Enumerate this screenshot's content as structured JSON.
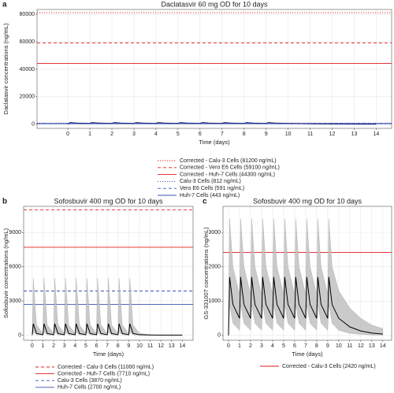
{
  "chart_data": [
    {
      "type": "line",
      "label": "a",
      "title": "Daclatasvir 60 mg OD for 10 days",
      "xlabel": "Time (days)",
      "ylabel": "Daclatasvir concentrations (ng/mL)",
      "xlim": [
        -1.4,
        14.7
      ],
      "ylim": [
        -3000,
        83500
      ],
      "xticks": [
        0,
        1,
        2,
        3,
        4,
        5,
        6,
        7,
        8,
        9,
        10,
        11,
        12,
        13,
        14
      ],
      "yticks": [
        0,
        20000,
        40000,
        60000,
        80000
      ],
      "grid": true,
      "x": [
        0,
        0.1,
        0.4,
        1,
        1.1,
        1.4,
        2,
        2.1,
        2.4,
        3,
        3.1,
        3.4,
        4,
        4.1,
        4.4,
        5,
        5.1,
        5.4,
        6,
        6.1,
        6.4,
        7,
        7.1,
        7.4,
        8,
        8.1,
        8.4,
        9,
        9.1,
        9.4,
        10,
        11,
        12,
        13,
        14
      ],
      "curve": {
        "color": "#1f2a7a",
        "median": [
          0,
          1300,
          900,
          600,
          1300,
          900,
          600,
          1300,
          900,
          600,
          1300,
          900,
          600,
          1300,
          900,
          600,
          1300,
          900,
          600,
          1300,
          900,
          600,
          1300,
          900,
          600,
          1300,
          900,
          600,
          1300,
          900,
          600,
          300,
          150,
          80,
          40
        ]
      },
      "ref_lines": [
        {
          "name": "Corrected - Calu-3 Cells (81200 ng/mL)",
          "color": "#e41a1c",
          "dash": "dotted",
          "value": 81200
        },
        {
          "name": "Corrected - Vero E6 Cells (59100 ng/mL)",
          "color": "#e41a1c",
          "dash": "dashed",
          "value": 59100
        },
        {
          "name": "Corrected - Huh-7 Cells (44300 ng/mL)",
          "color": "#e41a1c",
          "dash": "solid",
          "value": 44300
        },
        {
          "name": "Calu-3 Cells (812 ng/mL)",
          "color": "#3a52b5",
          "dash": "dotted",
          "value": 812
        },
        {
          "name": "Vero E6 Cells (591 ng/mL)",
          "color": "#3a52b5",
          "dash": "dashed",
          "value": 591
        },
        {
          "name": "Huh-7 Cells (443 ng/mL)",
          "color": "#3a52b5",
          "dash": "solid",
          "value": 443
        }
      ]
    },
    {
      "type": "line",
      "label": "b",
      "title": "Sofosbuvir 400 mg OD for 10 days",
      "xlabel": "Time (days)",
      "ylabel": "Sofosbuvir concentrations (ng/mL)",
      "xlim": [
        -0.8,
        15
      ],
      "ylim": [
        -450,
        11300
      ],
      "xticks": [
        0,
        1,
        2,
        3,
        4,
        5,
        6,
        7,
        8,
        9,
        10,
        11,
        12,
        13,
        14
      ],
      "yticks": [
        0,
        3000,
        6000,
        9000
      ],
      "grid": true,
      "x": [
        0,
        0.1,
        0.4,
        1,
        1.1,
        1.4,
        2,
        2.1,
        2.4,
        3,
        3.1,
        3.4,
        4,
        4.1,
        4.4,
        5,
        5.1,
        5.4,
        6,
        6.1,
        6.4,
        7,
        7.1,
        7.4,
        8,
        8.1,
        8.4,
        9,
        9.1,
        9.4,
        10,
        11,
        12,
        13,
        14
      ],
      "curve": {
        "color": "#000000",
        "band_color": "#bdbdbd",
        "median": [
          0,
          1000,
          150,
          30,
          1000,
          150,
          30,
          1000,
          150,
          30,
          1000,
          150,
          30,
          1000,
          150,
          30,
          1000,
          150,
          30,
          1000,
          150,
          30,
          1000,
          150,
          30,
          1000,
          150,
          30,
          1000,
          150,
          30,
          5,
          0,
          0,
          0
        ],
        "upper": [
          0,
          5000,
          900,
          150,
          5000,
          900,
          150,
          5000,
          900,
          150,
          5000,
          900,
          150,
          5000,
          900,
          150,
          5000,
          900,
          150,
          5000,
          900,
          150,
          5000,
          900,
          150,
          5000,
          900,
          150,
          5000,
          900,
          150,
          30,
          5,
          0,
          0
        ],
        "lower": [
          0,
          250,
          20,
          0,
          250,
          20,
          0,
          250,
          20,
          0,
          250,
          20,
          0,
          250,
          20,
          0,
          250,
          20,
          0,
          250,
          20,
          0,
          250,
          20,
          0,
          250,
          20,
          0,
          250,
          20,
          0,
          0,
          0,
          0,
          0
        ]
      },
      "ref_lines": [
        {
          "name": "Corrected - Calu-3 Cells (11000 ng/mL)",
          "color": "#e41a1c",
          "dash": "dashed",
          "value": 11000
        },
        {
          "name": "Corrected - Huh-7 Cells (7710 ng/mL)",
          "color": "#e41a1c",
          "dash": "solid",
          "value": 7710
        },
        {
          "name": "Calu-3 Cells (3870 ng/mL)",
          "color": "#3a52b5",
          "dash": "dashed",
          "value": 3870
        },
        {
          "name": "Huh-7 Cells (2700 ng/mL)",
          "color": "#3a52b5",
          "dash": "solid",
          "value": 2700
        }
      ]
    },
    {
      "type": "line",
      "label": "c",
      "title": "Sofosbuvir 400 mg OD for 10 days",
      "xlabel": "Time (days)",
      "ylabel": "GS-331007 concentrations (ng/mL)",
      "xlim": [
        -0.5,
        14.8
      ],
      "ylim": [
        -140,
        3760
      ],
      "xticks": [
        0,
        1,
        2,
        3,
        4,
        5,
        6,
        7,
        8,
        9,
        10,
        11,
        12,
        13,
        14
      ],
      "yticks": [
        0,
        1000,
        2000,
        3000
      ],
      "grid": true,
      "x": [
        0,
        0.1,
        0.4,
        1,
        1.1,
        1.4,
        2,
        2.1,
        2.4,
        3,
        3.1,
        3.4,
        4,
        4.1,
        4.4,
        5,
        5.1,
        5.4,
        6,
        6.1,
        6.4,
        7,
        7.1,
        7.4,
        8,
        8.1,
        8.4,
        9,
        9.1,
        9.4,
        10,
        11,
        12,
        13,
        14
      ],
      "curve": {
        "color": "#000000",
        "band_color": "#bdbdbd",
        "median": [
          0,
          1700,
          900,
          500,
          1700,
          900,
          500,
          1700,
          900,
          500,
          1700,
          900,
          500,
          1700,
          900,
          500,
          1700,
          900,
          500,
          1700,
          900,
          500,
          1700,
          900,
          500,
          1700,
          900,
          500,
          1700,
          900,
          500,
          250,
          130,
          70,
          40
        ],
        "upper": [
          0,
          3400,
          2000,
          1200,
          3400,
          2000,
          1200,
          3400,
          2000,
          1200,
          3400,
          2000,
          1200,
          3400,
          2000,
          1200,
          3400,
          2000,
          1200,
          3400,
          2000,
          1200,
          3400,
          2000,
          1200,
          3400,
          2000,
          1200,
          3400,
          2000,
          1300,
          800,
          500,
          300,
          200
        ],
        "lower": [
          0,
          900,
          350,
          150,
          900,
          350,
          150,
          900,
          350,
          150,
          900,
          350,
          150,
          900,
          350,
          150,
          900,
          350,
          150,
          900,
          350,
          150,
          900,
          350,
          150,
          900,
          350,
          150,
          900,
          350,
          150,
          60,
          30,
          15,
          8
        ]
      },
      "ref_lines": [
        {
          "name": "Corrected - Calu-3 Cells (2420 ng/mL)",
          "color": "#e41a1c",
          "dash": "solid",
          "value": 2420
        }
      ]
    }
  ]
}
